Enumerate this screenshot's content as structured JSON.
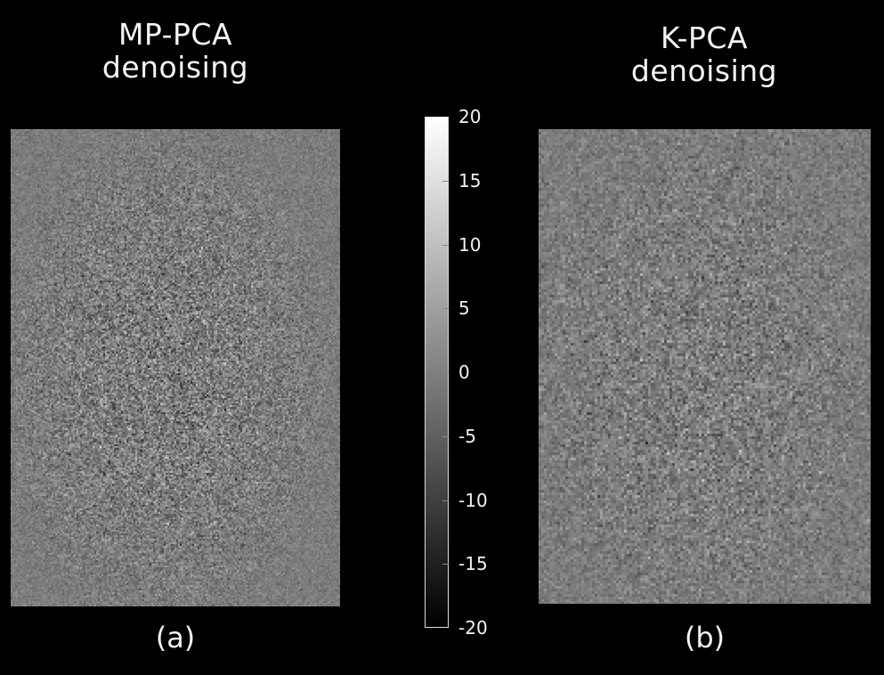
{
  "panels": {
    "left": {
      "title_line1": "MP-PCA",
      "title_line2": "denoising",
      "label": "(a)"
    },
    "right": {
      "title_line1": "K-PCA",
      "title_line2": "denoising",
      "label": "(b)"
    }
  },
  "colorbar": {
    "ticks": [
      "20",
      "15",
      "10",
      "5",
      "0",
      "-5",
      "-10",
      "-15",
      "-20"
    ],
    "range": [
      -20,
      20
    ],
    "colormap": "grayscale",
    "colors": {
      "max": "#ffffff",
      "min": "#000000"
    }
  },
  "colors": {
    "background": "#000000",
    "panel_base": "#7c7c7c",
    "text": "#f2f2f2"
  }
}
